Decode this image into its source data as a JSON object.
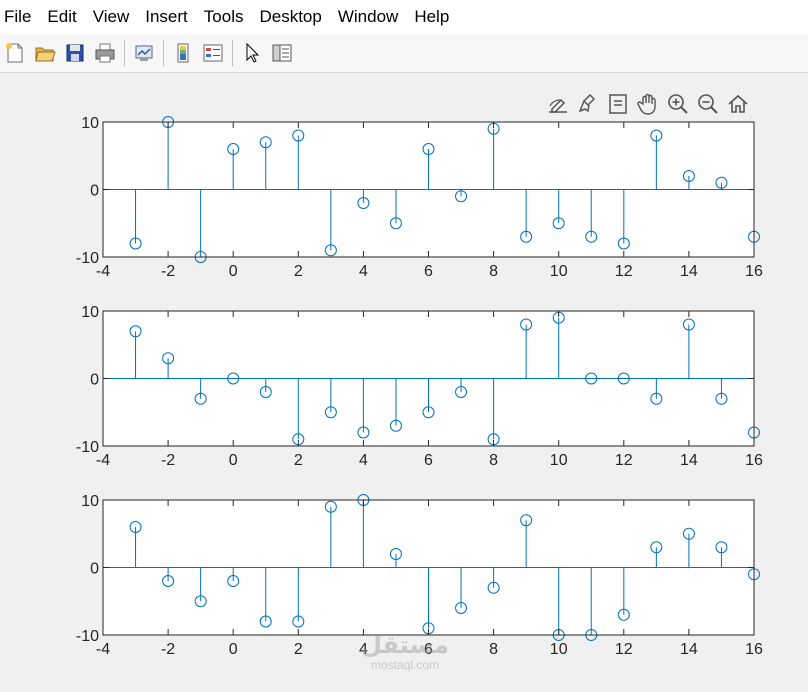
{
  "menu": [
    "File",
    "Edit",
    "View",
    "Insert",
    "Tools",
    "Desktop",
    "Window",
    "Help"
  ],
  "toolbar_icons": [
    "new-file-icon",
    "open-folder-icon",
    "save-icon",
    "print-icon",
    "link-plot-icon",
    "insert-colorbar-icon",
    "insert-legend-icon",
    "pointer-icon",
    "property-inspector-icon"
  ],
  "figure_tools": [
    "brush-edit-icon",
    "data-brush-icon",
    "data-tips-icon",
    "pan-hand-icon",
    "zoom-in-icon",
    "zoom-out-icon",
    "home-icon"
  ],
  "colors": {
    "stem": "#0072bd",
    "axes": "#262626",
    "background": "#f0f0f0",
    "plot_bg": "#ffffff"
  },
  "chart_data": [
    {
      "type": "stem",
      "x": [
        -3,
        -2,
        -1,
        0,
        1,
        2,
        3,
        4,
        5,
        6,
        7,
        8,
        9,
        10,
        11,
        12,
        13,
        14,
        15,
        16
      ],
      "values": [
        -8,
        10,
        -10,
        6,
        7,
        8,
        -9,
        -2,
        -5,
        6,
        -1,
        9,
        -7,
        -5,
        -7,
        -8,
        8,
        2,
        1,
        -7
      ],
      "xlim": [
        -4,
        16
      ],
      "ylim": [
        -10,
        10
      ],
      "xticks": [
        "-4",
        "-2",
        "0",
        "2",
        "4",
        "6",
        "8",
        "10",
        "12",
        "14",
        "16"
      ],
      "yticks": [
        "-10",
        "0",
        "10"
      ]
    },
    {
      "type": "stem",
      "x": [
        -3,
        -2,
        -1,
        0,
        1,
        2,
        3,
        4,
        5,
        6,
        7,
        8,
        9,
        10,
        11,
        12,
        13,
        14,
        15,
        16
      ],
      "values": [
        7,
        3,
        -3,
        0,
        -2,
        -9,
        -5,
        -8,
        -7,
        -5,
        -2,
        -9,
        8,
        9,
        0,
        0,
        -3,
        8,
        -3,
        -8
      ],
      "xlim": [
        -4,
        16
      ],
      "ylim": [
        -10,
        10
      ],
      "xticks": [
        "-4",
        "-2",
        "0",
        "2",
        "4",
        "6",
        "8",
        "10",
        "12",
        "14",
        "16"
      ],
      "yticks": [
        "-10",
        "0",
        "10"
      ]
    },
    {
      "type": "stem",
      "x": [
        -3,
        -2,
        -1,
        0,
        1,
        2,
        3,
        4,
        5,
        6,
        7,
        8,
        9,
        10,
        11,
        12,
        13,
        14,
        15,
        16
      ],
      "values": [
        6,
        -2,
        -5,
        -2,
        -8,
        -8,
        9,
        10,
        2,
        -9,
        -6,
        -3,
        7,
        -10,
        -10,
        -7,
        3,
        5,
        3,
        -1
      ],
      "xlim": [
        -4,
        16
      ],
      "ylim": [
        -10,
        10
      ],
      "xticks": [
        "-4",
        "-2",
        "0",
        "2",
        "4",
        "6",
        "8",
        "10",
        "12",
        "14",
        "16"
      ],
      "yticks": [
        "-10",
        "0",
        "10"
      ]
    }
  ],
  "watermark": {
    "arabic": "مستقل",
    "latin": "mostaql.com"
  }
}
